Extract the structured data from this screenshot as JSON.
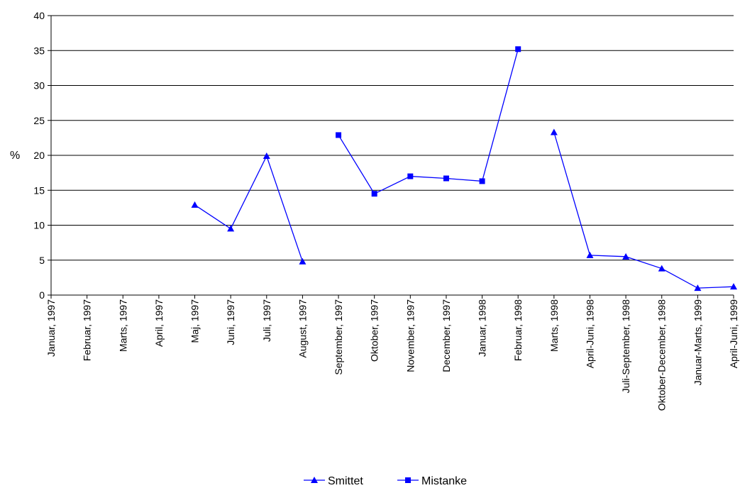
{
  "chart_data": {
    "type": "line",
    "ylabel": "%",
    "ylim": [
      0,
      40
    ],
    "yticks": [
      "0",
      "5",
      "10",
      "15",
      "20",
      "25",
      "30",
      "35",
      "40"
    ],
    "grid": true,
    "legend_position": "bottom",
    "categories": [
      "Januar, 1997",
      "Februar, 1997",
      "Marts, 1997",
      "April, 1997",
      "Maj, 1997",
      "Juni, 1997",
      "Juli, 1997",
      "August, 1997",
      "September, 1997",
      "Oktober, 1997",
      "November, 1997",
      "December, 1997",
      "Januar, 1998",
      "Februar, 1998",
      "Marts, 1998",
      "April-Juni, 1998",
      "Juli-September, 1998",
      "Oktober-December, 1998",
      "Januar-Marts, 1999",
      "April-Juni, 1999"
    ],
    "series": [
      {
        "name": "Smittet",
        "marker": "triangle",
        "color": "#0000FF",
        "values": [
          null,
          null,
          null,
          null,
          12.9,
          9.5,
          19.9,
          4.8,
          null,
          null,
          null,
          null,
          null,
          null,
          23.3,
          5.7,
          5.5,
          3.8,
          1.0,
          1.2
        ]
      },
      {
        "name": "Mistanke",
        "marker": "square",
        "color": "#0000FF",
        "values": [
          null,
          null,
          null,
          null,
          null,
          null,
          null,
          null,
          22.9,
          14.5,
          17.0,
          16.7,
          16.3,
          35.2,
          null,
          null,
          null,
          null,
          null,
          null
        ]
      }
    ]
  }
}
